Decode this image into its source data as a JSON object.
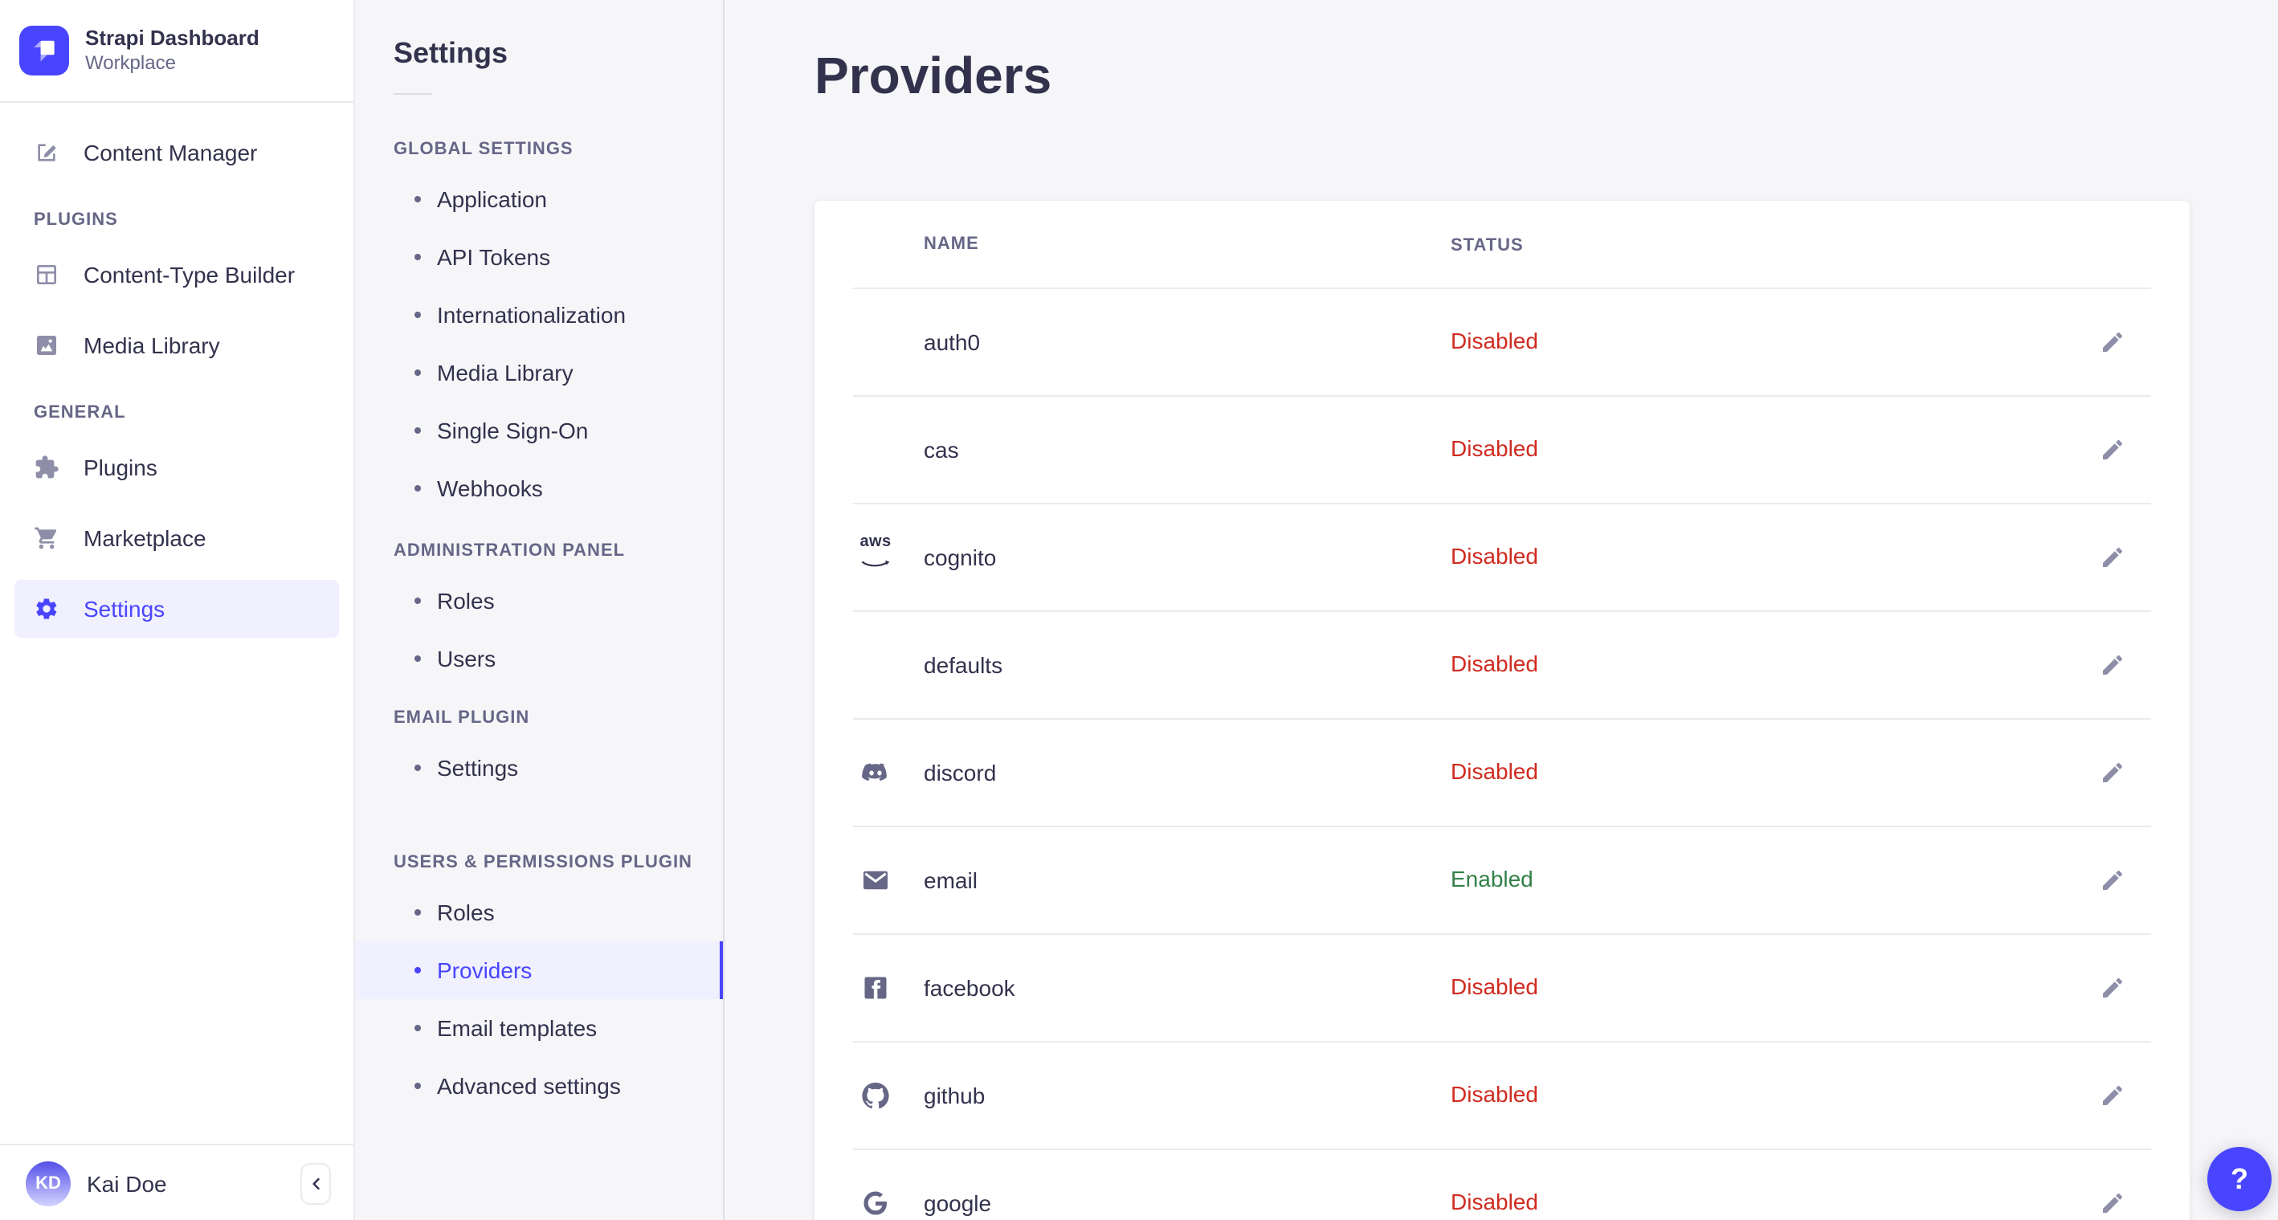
{
  "brand": {
    "title": "Strapi Dashboard",
    "subtitle": "Workplace"
  },
  "sidebar": {
    "sections": [
      {
        "title": "",
        "items": [
          {
            "label": "Content Manager",
            "icon": "pen"
          }
        ]
      },
      {
        "title": "PLUGINS",
        "items": [
          {
            "label": "Content-Type Builder",
            "icon": "layout"
          },
          {
            "label": "Media Library",
            "icon": "image"
          }
        ]
      },
      {
        "title": "GENERAL",
        "items": [
          {
            "label": "Plugins",
            "icon": "puzzle"
          },
          {
            "label": "Marketplace",
            "icon": "cart"
          },
          {
            "label": "Settings",
            "icon": "gear",
            "active": true
          }
        ]
      }
    ],
    "user": {
      "initials": "KD",
      "name": "Kai Doe"
    }
  },
  "subnav": {
    "title": "Settings",
    "sections": [
      {
        "title": "GLOBAL SETTINGS",
        "items": [
          {
            "label": "Application"
          },
          {
            "label": "API Tokens"
          },
          {
            "label": "Internationalization"
          },
          {
            "label": "Media Library"
          },
          {
            "label": "Single Sign-On"
          },
          {
            "label": "Webhooks"
          }
        ]
      },
      {
        "title": "ADMINISTRATION PANEL",
        "items": [
          {
            "label": "Roles"
          },
          {
            "label": "Users"
          }
        ]
      },
      {
        "title": "EMAIL PLUGIN",
        "items": [
          {
            "label": "Settings"
          }
        ]
      },
      {
        "title": "USERS & PERMISSIONS PLUGIN",
        "items": [
          {
            "label": "Roles"
          },
          {
            "label": "Providers",
            "active": true
          },
          {
            "label": "Email templates"
          },
          {
            "label": "Advanced settings"
          }
        ]
      }
    ]
  },
  "main": {
    "title": "Providers",
    "table": {
      "columns": [
        "NAME",
        "STATUS"
      ],
      "rows": [
        {
          "name": "auth0",
          "icon": null,
          "status": "Disabled"
        },
        {
          "name": "cas",
          "icon": null,
          "status": "Disabled"
        },
        {
          "name": "cognito",
          "icon": "aws",
          "status": "Disabled"
        },
        {
          "name": "defaults",
          "icon": null,
          "status": "Disabled"
        },
        {
          "name": "discord",
          "icon": "discord",
          "status": "Disabled"
        },
        {
          "name": "email",
          "icon": "envelope",
          "status": "Enabled"
        },
        {
          "name": "facebook",
          "icon": "facebook",
          "status": "Disabled"
        },
        {
          "name": "github",
          "icon": "github",
          "status": "Disabled"
        },
        {
          "name": "google",
          "icon": "google",
          "status": "Disabled"
        }
      ]
    }
  },
  "help_label": "?",
  "colors": {
    "primary": "#4945ff",
    "primary_bg": "#f0f0ff",
    "danger": "#d02b20",
    "success": "#328048"
  }
}
